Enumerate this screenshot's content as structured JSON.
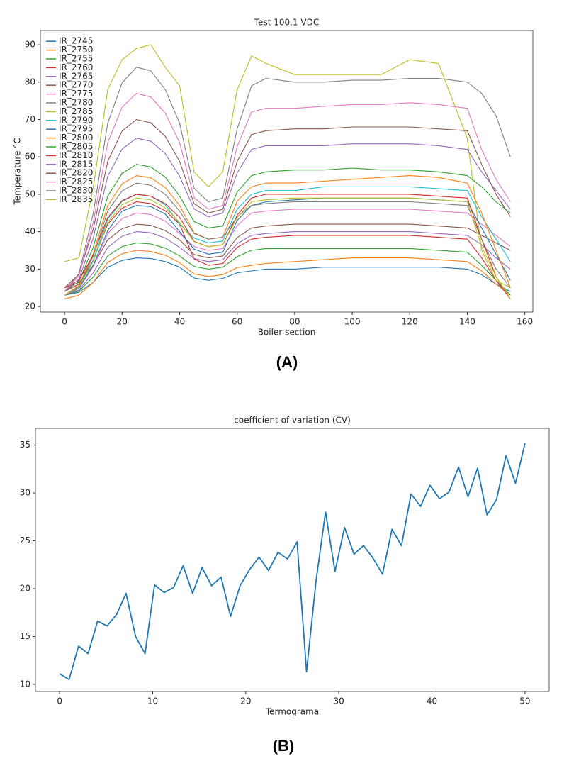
{
  "chart_data": [
    {
      "type": "line",
      "title": "Test  100.1 VDC",
      "x_label": "Boiler section",
      "y_label": "Temperature °C",
      "x": [
        0,
        5,
        10,
        15,
        20,
        25,
        30,
        35,
        40,
        45,
        50,
        55,
        60,
        65,
        70,
        80,
        90,
        100,
        110,
        120,
        130,
        140,
        145,
        150,
        155
      ],
      "xlim": [
        -8.4,
        162.8
      ],
      "xticks": [
        0,
        20,
        40,
        60,
        80,
        100,
        120,
        140,
        160
      ],
      "ylim": [
        18.5,
        93.8
      ],
      "yticks": [
        20,
        30,
        40,
        50,
        60,
        70,
        80,
        90
      ],
      "grid": false,
      "legend": "upper left",
      "series": [
        {
          "name": "IR_2745",
          "color": "#1f77b4",
          "values": [
            23,
            23.8,
            26.5,
            30.5,
            32.3,
            33,
            32.8,
            32,
            30.5,
            27.6,
            27,
            27.5,
            29,
            29.5,
            30,
            30,
            30.5,
            30.5,
            30.5,
            30.5,
            30.5,
            30,
            28.5,
            26,
            24
          ]
        },
        {
          "name": "IR_2750",
          "color": "#ff7f0e",
          "values": [
            22,
            23,
            26.5,
            31.8,
            34.1,
            35,
            34.7,
            33.7,
            31.7,
            28.7,
            28,
            28.5,
            30.4,
            31,
            31.5,
            32,
            32.5,
            33,
            33,
            33,
            32.5,
            32,
            29.5,
            26,
            23
          ]
        },
        {
          "name": "IR_2755",
          "color": "#2ca02c",
          "values": [
            23,
            24.1,
            27.9,
            33.5,
            36,
            37,
            36.7,
            35.6,
            33.5,
            30.7,
            30,
            30.5,
            33.3,
            35,
            35.5,
            35.5,
            35.5,
            35.5,
            35.5,
            35.5,
            35,
            34.5,
            31,
            27,
            23
          ]
        },
        {
          "name": "IR_2760",
          "color": "#d62728",
          "values": [
            24,
            26,
            32.4,
            42,
            46.3,
            48,
            47.5,
            45.6,
            42,
            32.7,
            31,
            31.5,
            35.8,
            38,
            38.5,
            39,
            39,
            39,
            39,
            39,
            38.5,
            38,
            33,
            27,
            22
          ]
        },
        {
          "name": "IR_2765",
          "color": "#9467bd",
          "values": [
            23,
            24.4,
            29,
            35.8,
            38.8,
            40,
            39.7,
            38.3,
            35.8,
            32.8,
            32,
            32.5,
            36.8,
            39,
            39.5,
            40,
            40,
            40,
            40,
            40,
            39.5,
            39,
            36.5,
            33,
            30
          ]
        },
        {
          "name": "IR_2770",
          "color": "#8c564b",
          "values": [
            25,
            26.4,
            31,
            37.8,
            40.8,
            42,
            41.7,
            40.3,
            37.8,
            33.9,
            33,
            33.5,
            38.4,
            41,
            41.5,
            42,
            42,
            42,
            42,
            42,
            41.5,
            41,
            39,
            37,
            35
          ]
        },
        {
          "name": "IR_2775",
          "color": "#e377c2",
          "values": [
            23,
            24.8,
            30.7,
            39.5,
            43.5,
            45,
            44.6,
            42.8,
            39.5,
            36,
            35,
            35.5,
            41.6,
            45,
            45.5,
            46,
            46,
            46,
            46,
            46,
            45.5,
            45,
            42,
            39,
            36
          ]
        },
        {
          "name": "IR_2780",
          "color": "#7f7f7f",
          "values": [
            24,
            28.8,
            45,
            69,
            79.8,
            84,
            83,
            78,
            69,
            51.6,
            48,
            49,
            67.5,
            79,
            81,
            80,
            80,
            80.5,
            80.5,
            81,
            81,
            80,
            77,
            71,
            60
          ]
        },
        {
          "name": "IR_2785",
          "color": "#bcbd22",
          "values": [
            32,
            33,
            52,
            78,
            86,
            89,
            90,
            84,
            79,
            56,
            52,
            56,
            78,
            87,
            85,
            82,
            82,
            82,
            82,
            86,
            85,
            65,
            35,
            27,
            25
          ]
        },
        {
          "name": "IR_2790",
          "color": "#17becf",
          "values": [
            23,
            25.2,
            32.5,
            43.3,
            48.1,
            50,
            49.5,
            47.2,
            42,
            38.3,
            37,
            37.5,
            46,
            50,
            51,
            51,
            52,
            52,
            52,
            52,
            51.5,
            51,
            44,
            38,
            32
          ]
        },
        {
          "name": "IR_2795",
          "color": "#1f77b4",
          "values": [
            23,
            24.9,
            31.1,
            40.3,
            45.5,
            47,
            46.7,
            44.7,
            40,
            35.3,
            34,
            34.5,
            43,
            47,
            48,
            48.5,
            49,
            49,
            49,
            49,
            48.5,
            48,
            41,
            34,
            27
          ]
        },
        {
          "name": "IR_2800",
          "color": "#ff7f0e",
          "values": [
            23,
            25.6,
            34.2,
            47,
            52.8,
            55,
            54.4,
            51.8,
            47,
            39.7,
            38,
            38.5,
            48.2,
            52,
            53,
            53,
            53.5,
            54,
            54.5,
            55,
            54.5,
            53,
            45,
            35,
            25
          ]
        },
        {
          "name": "IR_2805",
          "color": "#2ca02c",
          "values": [
            24,
            26.7,
            35.9,
            49.5,
            55.6,
            58,
            57.3,
            54.6,
            49.5,
            42.7,
            41,
            41.5,
            50.6,
            55,
            56,
            56.5,
            56.5,
            57,
            56.5,
            56.5,
            56,
            55,
            52,
            48,
            45
          ]
        },
        {
          "name": "IR_2810",
          "color": "#d62728",
          "values": [
            25,
            27,
            33.8,
            43.8,
            48.3,
            50,
            49.5,
            47.5,
            43.8,
            37.4,
            36,
            36.5,
            44.4,
            49,
            50,
            50,
            50,
            50,
            50,
            50,
            49.5,
            49,
            38,
            28,
            22
          ]
        },
        {
          "name": "IR_2815",
          "color": "#9467bd",
          "values": [
            24,
            27.3,
            38.4,
            54.8,
            62.1,
            65,
            64.2,
            60.9,
            54.8,
            46.1,
            44,
            45,
            55.7,
            62,
            63,
            63,
            63,
            63.5,
            63.5,
            63.5,
            63,
            62,
            56,
            51,
            46
          ]
        },
        {
          "name": "IR_2820",
          "color": "#8c564b",
          "values": [
            25,
            28.6,
            40.8,
            58.8,
            66.9,
            70,
            69.1,
            65.5,
            58.8,
            47.5,
            45,
            46,
            58.8,
            66,
            67,
            67.5,
            67.5,
            68,
            68,
            68,
            67.5,
            67,
            58,
            50,
            44
          ]
        },
        {
          "name": "IR_2825",
          "color": "#e377c2",
          "values": [
            24,
            28.2,
            42.6,
            63.8,
            73.3,
            77,
            76,
            71.7,
            63.8,
            49.1,
            46,
            47,
            62.8,
            72,
            73,
            73,
            73.5,
            74,
            74,
            74.5,
            74,
            73,
            62,
            54,
            48
          ]
        },
        {
          "name": "IR_2830",
          "color": "#7f7f7f",
          "values": [
            23,
            25.4,
            33.5,
            45.5,
            50.9,
            53,
            52.4,
            50,
            45.5,
            39.5,
            38,
            38.5,
            44,
            47,
            47.5,
            48,
            48,
            48,
            48,
            48,
            47.5,
            47,
            38,
            30,
            25
          ]
        },
        {
          "name": "IR_2835",
          "color": "#bcbd22",
          "values": [
            23,
            25.1,
            32.1,
            42.5,
            47.2,
            49,
            48.5,
            46.4,
            42.5,
            37.3,
            36,
            36.5,
            43.8,
            48,
            48.5,
            49,
            49,
            49,
            49,
            49,
            48.5,
            48,
            36,
            28,
            22
          ]
        }
      ]
    },
    {
      "type": "line",
      "title": "coefficient of variation (CV)",
      "x_label": "Termograma",
      "x": [
        0,
        1.02,
        2.04,
        3.06,
        4.08,
        5.1,
        6.12,
        7.14,
        8.16,
        9.18,
        10.2,
        11.22,
        12.24,
        13.27,
        14.29,
        15.31,
        16.33,
        17.35,
        18.37,
        19.39,
        20.41,
        21.43,
        22.45,
        23.47,
        24.49,
        25.51,
        26.53,
        27.55,
        28.57,
        29.59,
        30.61,
        31.63,
        32.65,
        33.67,
        34.69,
        35.71,
        36.73,
        37.76,
        38.78,
        39.8,
        40.82,
        41.84,
        42.86,
        43.88,
        44.9,
        45.92,
        46.94,
        47.96,
        48.98,
        50
      ],
      "values": [
        11.1,
        10.5,
        14,
        13.2,
        16.6,
        16.1,
        17.3,
        19.5,
        15,
        13.2,
        20.4,
        19.6,
        20.1,
        22.4,
        19.5,
        22.2,
        20.3,
        21.2,
        17.1,
        20.3,
        22,
        23.3,
        21.9,
        23.8,
        23.1,
        24.9,
        11.3,
        20.8,
        28,
        21.8,
        26.4,
        23.6,
        24.5,
        23.2,
        21.5,
        26.2,
        24.5,
        29.9,
        28.6,
        30.8,
        29.4,
        30.1,
        32.7,
        29.6,
        32.6,
        27.7,
        29.3,
        33.9,
        31,
        35.2
      ],
      "color": "#1f77b4",
      "xlim": [
        -2.6,
        52.6
      ],
      "xticks": [
        0,
        10,
        20,
        30,
        40,
        50
      ],
      "ylim": [
        9.25,
        36.75
      ],
      "yticks": [
        10,
        15,
        20,
        25,
        30,
        35
      ],
      "grid": false
    }
  ],
  "panel_labels": [
    "(A)",
    "(B)"
  ]
}
